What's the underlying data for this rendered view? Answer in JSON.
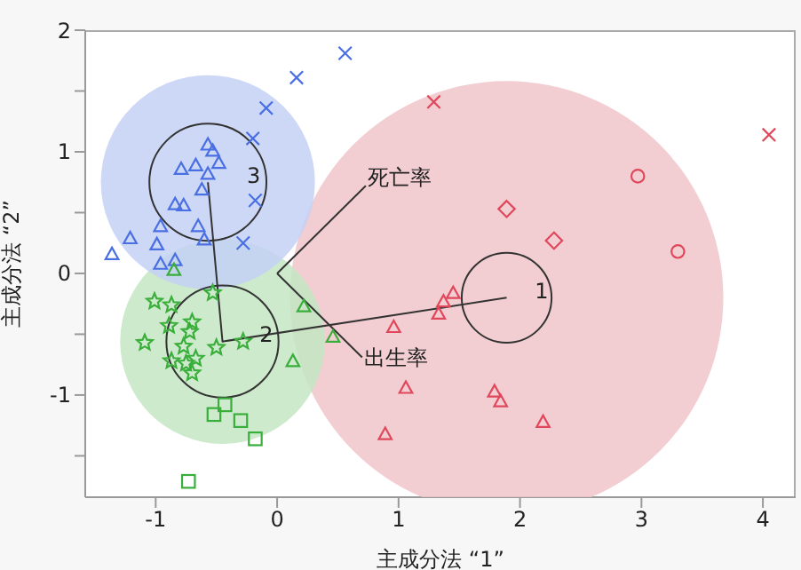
{
  "chart_data": {
    "type": "scatter",
    "xlabel": "主成分法 “1”",
    "ylabel": "主成分法 “2”",
    "xlim": [
      -1.58,
      4.27
    ],
    "ylim": [
      -1.84,
      2
    ],
    "xticks": [
      -1,
      0,
      1,
      2,
      3,
      4
    ],
    "yticks": [
      {
        "value": -1.5,
        "label": null
      },
      -1,
      {
        "value": -0.5,
        "label": null
      },
      0,
      {
        "value": 0.5,
        "label": null
      },
      1,
      {
        "value": 1.5,
        "label": null
      },
      2
    ],
    "grid": false,
    "legend": false,
    "series": [
      {
        "type": "bubble",
        "colors": [
          "#f0c5ca",
          "#c4e6c3",
          "#c4d1f4"
        ],
        "x": [
          1.89,
          -0.45,
          -0.57
        ],
        "values": [
          -0.2,
          -0.56,
          0.75
        ],
        "sizes": [
          1,
          0.223,
          0.244
        ]
      },
      {
        "type": "line",
        "color": "#333333",
        "x": [
          -0.57,
          -0.45,
          1.89
        ],
        "values": [
          0.75,
          -0.56,
          -0.2
        ]
      },
      {
        "type": "line",
        "color": "#333333",
        "x": [
          0,
          0.73
        ],
        "values": [
          0,
          0.72
        ]
      },
      {
        "type": "line",
        "color": "#333333",
        "x": [
          0,
          0.7
        ],
        "values": [
          0,
          -0.69
        ]
      },
      {
        "type": "bubble",
        "line_style": "solid",
        "colors": [
          "#333333",
          "#333333",
          "#333333"
        ],
        "x": [
          1.89,
          -0.45,
          -0.57
        ],
        "values": [
          -0.2,
          -0.56,
          0.75
        ],
        "sizes": [
          0.043,
          0.067,
          0.073
        ]
      },
      {
        "type": "scatter",
        "marker": "triangle",
        "color": "#4a6fe3",
        "x": [
          -0.57,
          -0.53,
          -0.48,
          -0.79,
          -0.67,
          -0.57,
          -0.62,
          -0.84,
          -0.77,
          -0.65,
          -0.96,
          -1.21,
          -0.99,
          -1.36,
          -0.96,
          -0.84,
          -0.6
        ],
        "values": [
          1.06,
          1.01,
          0.91,
          0.86,
          0.89,
          0.82,
          0.69,
          0.57,
          0.56,
          0.39,
          0.39,
          0.29,
          0.24,
          0.16,
          0.08,
          0.11,
          0.28
        ]
      },
      {
        "type": "scatter",
        "marker": "cross",
        "color": "#4a6fe3",
        "x": [
          0.56,
          0.16,
          -0.09,
          -0.2,
          -0.18,
          -0.28
        ],
        "values": [
          1.81,
          1.61,
          1.36,
          1.11,
          0.6,
          0.25
        ]
      },
      {
        "type": "scatter",
        "marker": "star",
        "color": "#3aae3a",
        "x": [
          -1.01,
          -0.87,
          -0.7,
          -0.72,
          -0.89,
          -1.09,
          -0.77,
          -0.5,
          -0.28,
          -0.87,
          -0.75,
          -0.7,
          -0.53,
          -0.67
        ],
        "values": [
          -0.23,
          -0.26,
          -0.4,
          -0.48,
          -0.43,
          -0.57,
          -0.6,
          -0.61,
          -0.56,
          -0.72,
          -0.74,
          -0.82,
          -0.16,
          -0.7
        ]
      },
      {
        "type": "scatter",
        "marker": "square",
        "color": "#3aae3a",
        "x": [
          -0.43,
          -0.52,
          -0.3,
          -0.18,
          -0.73
        ],
        "values": [
          -1.08,
          -1.16,
          -1.21,
          -1.36,
          -1.71
        ]
      },
      {
        "type": "scatter",
        "marker": "triangle",
        "color": "#3aae3a",
        "x": [
          0.22,
          0.46,
          0.13,
          -0.85
        ],
        "values": [
          -0.27,
          -0.52,
          -0.72,
          0.03
        ]
      },
      {
        "type": "scatter",
        "marker": "cross",
        "color": "#e0475a",
        "x": [
          1.29,
          4.05
        ],
        "values": [
          1.41,
          1.14
        ]
      },
      {
        "type": "scatter",
        "marker": "circle",
        "color": "#e0475a",
        "x": [
          2.97,
          3.3
        ],
        "values": [
          0.8,
          0.18
        ]
      },
      {
        "type": "scatter",
        "marker": "diamond",
        "color": "#e0475a",
        "x": [
          1.89,
          2.28
        ],
        "values": [
          0.53,
          0.27
        ]
      },
      {
        "type": "scatter",
        "marker": "triangle",
        "color": "#e0475a",
        "x": [
          1.45,
          1.37,
          1.33,
          0.96,
          1.06,
          0.89,
          1.79,
          1.84,
          2.19
        ],
        "values": [
          -0.16,
          -0.23,
          -0.33,
          -0.44,
          -0.94,
          -1.32,
          -0.97,
          -1.05,
          -1.22
        ]
      }
    ],
    "annotations": [
      "1",
      "2",
      "3",
      "死亡率",
      "出生率"
    ]
  }
}
